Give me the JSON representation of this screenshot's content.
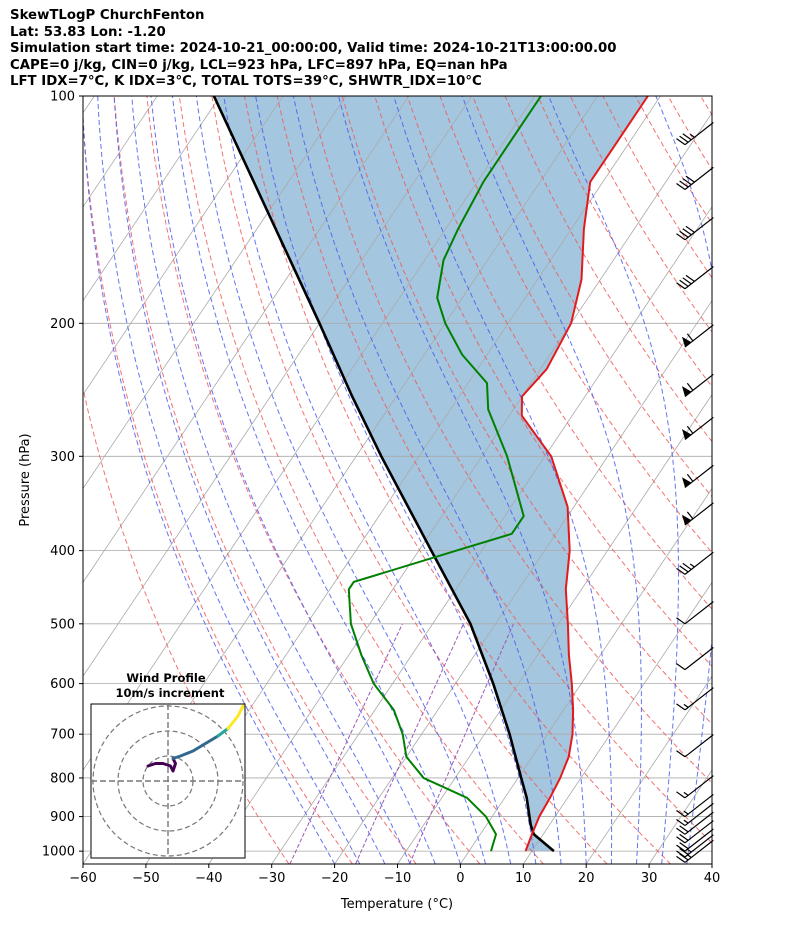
{
  "header": {
    "line1": "SkewTLogP ChurchFenton",
    "line2": "Lat: 53.83   Lon: -1.20",
    "line3": "Simulation start time: 2024-10-21_00:00:00, Valid time: 2024-10-21T13:00:00.00",
    "line4": "CAPE=0 j/kg, CIN=0 j/kg, LCL=923 hPa, LFC=897 hPa, EQ=nan hPa",
    "line5": "LFT IDX=7°C, K IDX=3°C, TOTAL TOTS=39°C, SHWTR_IDX=10°C"
  },
  "chart_data": {
    "type": "skew-t log-p",
    "xlabel": "Temperature (°C)",
    "ylabel": "Pressure (hPa)",
    "x_ticks": [
      -60,
      -50,
      -40,
      -30,
      -20,
      -10,
      0,
      10,
      20,
      30,
      40
    ],
    "y_ticks": [
      100,
      200,
      300,
      400,
      500,
      600,
      700,
      800,
      900,
      1000
    ],
    "xlim": [
      -60,
      40
    ],
    "ylim": [
      1040,
      100
    ],
    "y_scale": "log",
    "grid": true,
    "colors": {
      "temperature": "#e31a1c",
      "dewpoint": "#008000",
      "parcel": "#000000",
      "cape_fill": "#a4c6df",
      "dry_adiabat": "#f05a5a",
      "moist_adiabat": "#4a5cf0",
      "mixing_ratio": "#9b59b6",
      "isotherm": "#aaaaaa"
    },
    "temperature": [
      {
        "p": 1000,
        "t": 9.0
      },
      {
        "p": 950,
        "t": 8.2
      },
      {
        "p": 900,
        "t": 7.5
      },
      {
        "p": 850,
        "t": 7.2
      },
      {
        "p": 800,
        "t": 6.7
      },
      {
        "p": 750,
        "t": 5.8
      },
      {
        "p": 700,
        "t": 4.0
      },
      {
        "p": 650,
        "t": 1.5
      },
      {
        "p": 600,
        "t": -1.5
      },
      {
        "p": 550,
        "t": -5.0
      },
      {
        "p": 500,
        "t": -8.5
      },
      {
        "p": 450,
        "t": -12.5
      },
      {
        "p": 400,
        "t": -16.0
      },
      {
        "p": 350,
        "t": -21.0
      },
      {
        "p": 300,
        "t": -29.0
      },
      {
        "p": 265,
        "t": -38.0
      },
      {
        "p": 250,
        "t": -40.0
      },
      {
        "p": 230,
        "t": -39.0
      },
      {
        "p": 200,
        "t": -40.0
      },
      {
        "p": 175,
        "t": -43.0
      },
      {
        "p": 150,
        "t": -48.0
      },
      {
        "p": 130,
        "t": -52.0
      },
      {
        "p": 115,
        "t": -52.0
      },
      {
        "p": 100,
        "t": -52.0
      }
    ],
    "dewpoint": [
      {
        "p": 1000,
        "t": 3.5
      },
      {
        "p": 950,
        "t": 2.5
      },
      {
        "p": 900,
        "t": -1.0
      },
      {
        "p": 850,
        "t": -6.0
      },
      {
        "p": 800,
        "t": -15.0
      },
      {
        "p": 750,
        "t": -20.0
      },
      {
        "p": 700,
        "t": -23.0
      },
      {
        "p": 650,
        "t": -27.0
      },
      {
        "p": 600,
        "t": -33.0
      },
      {
        "p": 550,
        "t": -38.0
      },
      {
        "p": 500,
        "t": -43.0
      },
      {
        "p": 450,
        "t": -47.0
      },
      {
        "p": 440,
        "t": -47.0
      },
      {
        "p": 400,
        "t": -34.0
      },
      {
        "p": 380,
        "t": -27.0
      },
      {
        "p": 360,
        "t": -27.0
      },
      {
        "p": 300,
        "t": -36.0
      },
      {
        "p": 260,
        "t": -44.0
      },
      {
        "p": 240,
        "t": -47.0
      },
      {
        "p": 220,
        "t": -54.0
      },
      {
        "p": 200,
        "t": -60.0
      },
      {
        "p": 185,
        "t": -64.0
      },
      {
        "p": 165,
        "t": -67.0
      },
      {
        "p": 150,
        "t": -68.0
      },
      {
        "p": 130,
        "t": -69.0
      },
      {
        "p": 115,
        "t": -69.0
      },
      {
        "p": 100,
        "t": -69.0
      }
    ],
    "parcel": [
      {
        "p": 1000,
        "t": 13.5
      },
      {
        "p": 950,
        "t": 8.5
      },
      {
        "p": 923,
        "t": 7.0
      },
      {
        "p": 850,
        "t": 3.5
      },
      {
        "p": 800,
        "t": 0.5
      },
      {
        "p": 700,
        "t": -6.0
      },
      {
        "p": 600,
        "t": -14.0
      },
      {
        "p": 500,
        "t": -24.0
      },
      {
        "p": 400,
        "t": -38.0
      },
      {
        "p": 300,
        "t": -56.0
      },
      {
        "p": 250,
        "t": -67.0
      },
      {
        "p": 200,
        "t": -80.0
      },
      {
        "p": 150,
        "t": -97.0
      },
      {
        "p": 100,
        "t": -121.0
      }
    ],
    "wind_barbs": [
      {
        "p": 1035,
        "speed_kt": 25,
        "flag": false
      },
      {
        "p": 1018,
        "speed_kt": 25,
        "flag": false
      },
      {
        "p": 1000,
        "speed_kt": 20,
        "flag": false
      },
      {
        "p": 975,
        "speed_kt": 20,
        "flag": false
      },
      {
        "p": 950,
        "speed_kt": 20,
        "flag": false
      },
      {
        "p": 925,
        "speed_kt": 15,
        "flag": false
      },
      {
        "p": 900,
        "speed_kt": 15,
        "flag": false
      },
      {
        "p": 850,
        "speed_kt": 15,
        "flag": false
      },
      {
        "p": 750,
        "speed_kt": 10,
        "flag": false
      },
      {
        "p": 650,
        "speed_kt": 15,
        "flag": false
      },
      {
        "p": 575,
        "speed_kt": 10,
        "flag": false
      },
      {
        "p": 500,
        "speed_kt": 10,
        "flag": false
      },
      {
        "p": 430,
        "speed_kt": 35,
        "flag": false
      },
      {
        "p": 370,
        "speed_kt": 60,
        "flag": true
      },
      {
        "p": 330,
        "speed_kt": 60,
        "flag": true
      },
      {
        "p": 285,
        "speed_kt": 60,
        "flag": true
      },
      {
        "p": 250,
        "speed_kt": 60,
        "flag": true
      },
      {
        "p": 215,
        "speed_kt": 60,
        "flag": true
      },
      {
        "p": 180,
        "speed_kt": 40,
        "flag": false
      },
      {
        "p": 155,
        "speed_kt": 40,
        "flag": false
      },
      {
        "p": 133,
        "speed_kt": 40,
        "flag": false
      },
      {
        "p": 116,
        "speed_kt": 35,
        "flag": false
      }
    ],
    "hodograph": {
      "title": "Wind Profile",
      "subtitle": "10m/s increment",
      "rings_ms": [
        10,
        20,
        30
      ],
      "segments": [
        {
          "color": "#440154",
          "points": [
            [
              -8,
              6
            ],
            [
              -5,
              7
            ],
            [
              -2,
              7
            ],
            [
              1,
              6
            ],
            [
              2,
              4
            ],
            [
              3,
              7
            ],
            [
              2,
              9
            ]
          ]
        },
        {
          "color": "#31688e",
          "points": [
            [
              2,
              9
            ],
            [
              5,
              10
            ],
            [
              10,
              12
            ],
            [
              15,
              15
            ],
            [
              20,
              18
            ]
          ]
        },
        {
          "color": "#26a69a",
          "points": [
            [
              20,
              18
            ],
            [
              24,
              21
            ]
          ]
        },
        {
          "color": "#fde725",
          "points": [
            [
              24,
              21
            ],
            [
              28,
              26
            ],
            [
              30,
              30
            ]
          ]
        }
      ]
    }
  }
}
